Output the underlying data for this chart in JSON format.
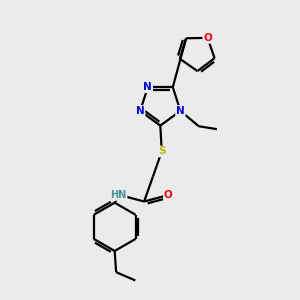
{
  "bg_color": "#ebebeb",
  "atom_colors": {
    "N": "#0000ff",
    "O": "#ff0000",
    "S": "#b8b800",
    "C": "#000000",
    "H": "#4a9090"
  },
  "bond_color": "#000000"
}
